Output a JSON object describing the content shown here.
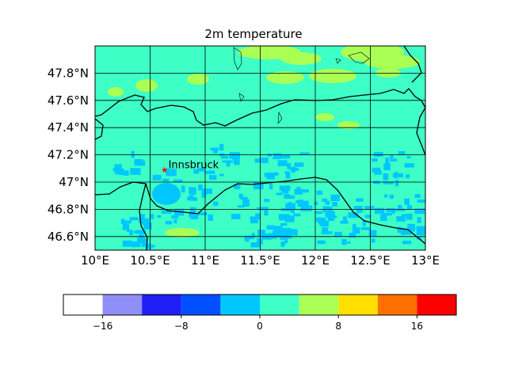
{
  "title": "2m temperature",
  "colors": {
    "field_base": "#3effc6",
    "field_cool": "#00c8ff",
    "field_warm": "#aaff55",
    "coastline": "#000000",
    "gridline": "#000000",
    "marker": "#ff0000"
  },
  "map": {
    "lon_range": [
      10.0,
      13.0
    ],
    "lat_range": [
      46.5,
      48.0
    ],
    "lon_ticks": [
      10.0,
      10.5,
      11.0,
      11.5,
      12.0,
      12.5,
      13.0
    ],
    "lon_tick_labels": [
      "10°E",
      "10.5°E",
      "11°E",
      "11.5°E",
      "12°E",
      "12.5°E",
      "13°E"
    ],
    "lat_ticks": [
      46.6,
      46.8,
      47.0,
      47.2,
      47.4,
      47.6,
      47.8
    ],
    "lat_tick_labels": [
      "46.6°N",
      "46.8°N",
      "47°N",
      "47.2°N",
      "47.4°N",
      "47.6°N",
      "47.8°N"
    ],
    "gridlines": true,
    "marker": {
      "name": "Innsbruck",
      "lon": 10.63,
      "lat": 47.09,
      "symbol": "★"
    }
  },
  "colorbar": {
    "levels": [
      -20,
      -16,
      -12,
      -8,
      -4,
      0,
      4,
      8,
      12,
      16,
      20
    ],
    "colors": [
      "#ffffff",
      "#8f8ff7",
      "#1f1ff6",
      "#0050ff",
      "#00c8ff",
      "#3effc6",
      "#aaff55",
      "#ffe000",
      "#ff6f00",
      "#ff0000"
    ],
    "tick_values": [
      -16,
      -8,
      0,
      8,
      16
    ],
    "tick_labels": [
      "−16",
      "−8",
      "0",
      "8",
      "16"
    ]
  }
}
